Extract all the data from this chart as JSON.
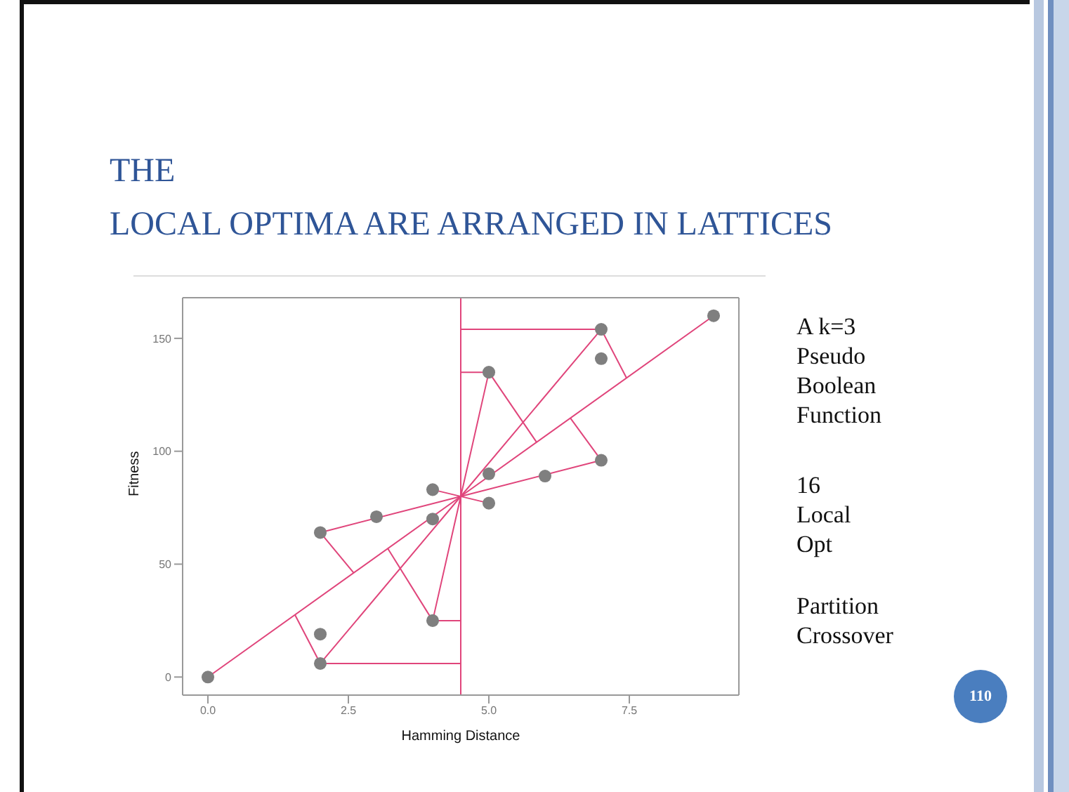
{
  "chart_data": {
    "type": "scatter",
    "title": "THE\nLOCAL OPTIMA ARE ARRANGED IN LATTICES",
    "xlabel": "Hamming Distance",
    "ylabel": "Fitness",
    "xlim": [
      -0.45,
      9.45
    ],
    "xticks": [
      {
        "value": 0,
        "label": "0.0"
      },
      {
        "value": 2.5,
        "label": "2.5"
      },
      {
        "value": 5,
        "label": "5.0"
      },
      {
        "value": 7.5,
        "label": "7.5"
      }
    ],
    "ylim": [
      -8,
      168
    ],
    "yticks": [
      0,
      50,
      100,
      150
    ],
    "grid": false,
    "marker": "circle",
    "ref_lines": [
      {
        "axis": "x",
        "value": 4.5,
        "color": "#e0457b"
      }
    ],
    "series": [
      {
        "type": "scatter",
        "color": "#7f7f7f",
        "x": [
          0,
          2,
          2,
          2,
          3,
          4,
          4,
          4,
          5,
          5,
          5,
          6,
          7,
          7,
          7,
          9
        ],
        "values": [
          0,
          6,
          19,
          64,
          71,
          83,
          70,
          25,
          135,
          90,
          77,
          89,
          154,
          141,
          96,
          160
        ]
      },
      {
        "type": "line",
        "color": "#e0457b",
        "marker": "none",
        "x": [
          0,
          4.5,
          9
        ],
        "values": [
          0,
          80,
          160
        ]
      },
      {
        "type": "line",
        "color": "#e0457b",
        "marker": "none",
        "x": [
          2,
          4.5,
          7
        ],
        "values": [
          6,
          80,
          154
        ]
      },
      {
        "type": "line",
        "color": "#e0457b",
        "marker": "none",
        "x": [
          4,
          4.5,
          5
        ],
        "values": [
          25,
          80,
          135
        ]
      },
      {
        "type": "line",
        "color": "#e0457b",
        "marker": "none",
        "x": [
          2,
          4.5,
          7
        ],
        "values": [
          64,
          80,
          96
        ]
      },
      {
        "type": "line",
        "color": "#e0457b",
        "marker": "none",
        "x": [
          4,
          5
        ],
        "values": [
          83,
          77
        ]
      },
      {
        "type": "line",
        "color": "#e0457b",
        "marker": "none",
        "x": [
          2,
          4.5
        ],
        "values": [
          6,
          6
        ]
      },
      {
        "type": "line",
        "color": "#e0457b",
        "marker": "none",
        "x": [
          4,
          4.5
        ],
        "values": [
          25,
          25
        ]
      },
      {
        "type": "line",
        "color": "#e0457b",
        "marker": "none",
        "x": [
          4.5,
          5
        ],
        "values": [
          135,
          135
        ]
      },
      {
        "type": "line",
        "color": "#e0457b",
        "marker": "none",
        "x": [
          4.5,
          7
        ],
        "values": [
          154,
          154
        ]
      },
      {
        "type": "line",
        "color": "#e0457b",
        "marker": "none",
        "x": [
          2,
          1.55
        ],
        "values": [
          6,
          27.5
        ]
      },
      {
        "type": "line",
        "color": "#e0457b",
        "marker": "none",
        "x": [
          2,
          2.6
        ],
        "values": [
          64,
          46
        ]
      },
      {
        "type": "line",
        "color": "#e0457b",
        "marker": "none",
        "x": [
          4,
          3.2
        ],
        "values": [
          25,
          57
        ]
      },
      {
        "type": "line",
        "color": "#e0457b",
        "marker": "none",
        "x": [
          7,
          7.45
        ],
        "values": [
          154,
          132.5
        ]
      },
      {
        "type": "line",
        "color": "#e0457b",
        "marker": "none",
        "x": [
          5,
          5.85
        ],
        "values": [
          135,
          104
        ]
      },
      {
        "type": "line",
        "color": "#e0457b",
        "marker": "none",
        "x": [
          7,
          6.45
        ],
        "values": [
          96,
          114.7
        ]
      }
    ],
    "annotations": [
      "A k=3\nPseudo\nBoolean\nFunction",
      "16\nLocal\nOpt",
      "Partition\nCrossover",
      "110"
    ]
  }
}
